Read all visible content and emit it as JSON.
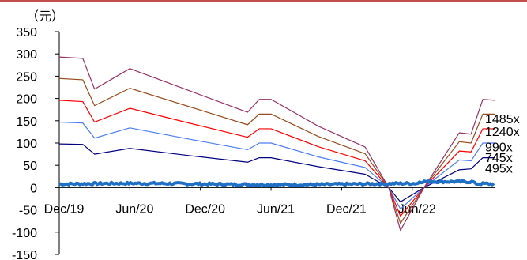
{
  "chart_data": {
    "type": "line",
    "unit_label": "（元）",
    "y_ticks": [
      350,
      300,
      250,
      200,
      150,
      100,
      50,
      0,
      -50,
      -100,
      -150
    ],
    "ylim": [
      -150,
      350
    ],
    "x_ticks": [
      "Dec/19",
      "Jun/20",
      "Dec/20",
      "Jun/21",
      "Dec/21",
      "Jun/22"
    ],
    "x_tick_index": [
      0,
      6,
      12,
      18,
      24,
      30
    ],
    "x_count": 38,
    "grid": false,
    "legend": "none",
    "x": [
      0,
      2,
      3,
      6,
      11,
      16,
      17,
      18,
      22,
      26,
      28,
      29,
      31,
      34,
      35,
      36,
      37
    ],
    "series": [
      {
        "name": "495x",
        "color": "#000080",
        "values": [
          98,
          97,
          75,
          88,
          72,
          57,
          67,
          67,
          47,
          30,
          0,
          -32,
          0,
          40,
          42,
          67,
          67
        ],
        "label_y": 44
      },
      {
        "name": "745x",
        "color": "#4a7ef2",
        "values": [
          147,
          145,
          111,
          134,
          109,
          85,
          100,
          100,
          69,
          45,
          0,
          -48,
          0,
          62,
          60,
          100,
          100
        ],
        "label_y": 68
      },
      {
        "name": "990x",
        "color": "#ff0000",
        "values": [
          196,
          193,
          147,
          178,
          145,
          113,
          132,
          132,
          92,
          60,
          0,
          -64,
          0,
          82,
          80,
          132,
          132
        ],
        "label_y": 92
      },
      {
        "name": "1240x",
        "color": "#994c1c",
        "values": [
          245,
          242,
          184,
          223,
          182,
          141,
          165,
          165,
          115,
          76,
          0,
          -80,
          0,
          103,
          100,
          165,
          165
        ],
        "label_y": 127
      },
      {
        "name": "1485x",
        "color": "#993366",
        "values": [
          293,
          290,
          221,
          267,
          218,
          169,
          198,
          198,
          138,
          91,
          0,
          -96,
          0,
          123,
          120,
          198,
          196
        ],
        "label_y": 155
      }
    ],
    "price_series": {
      "name": "",
      "color": "#1f6fc4",
      "level": 8
    }
  }
}
